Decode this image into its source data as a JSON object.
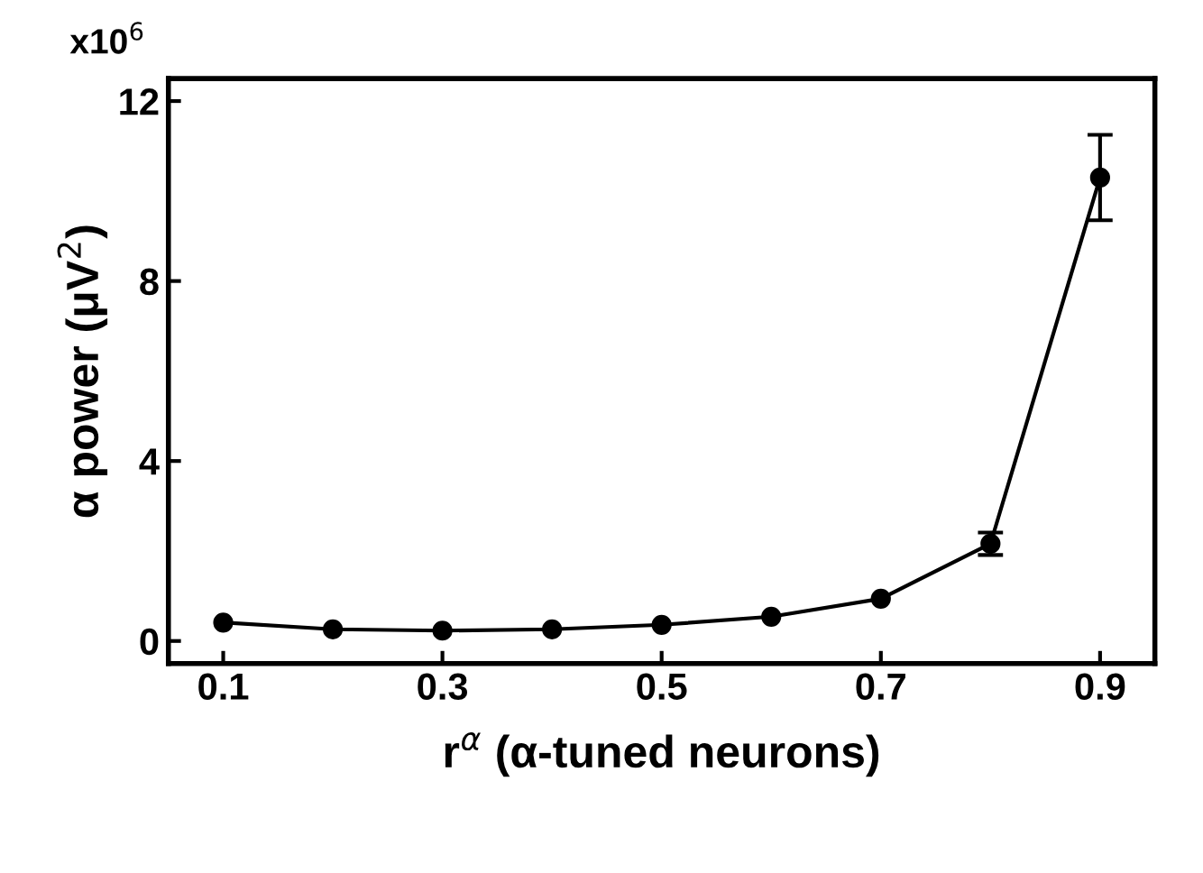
{
  "chart_data": {
    "type": "line",
    "xlabel": "r$^{α}$ (α-tuned neurons)",
    "ylabel": "α power (μV$^{2}$)",
    "annotations": [
      "x10$^{6}$"
    ],
    "x": [
      0.1,
      0.2,
      0.3,
      0.4,
      0.5,
      0.6,
      0.7,
      0.8,
      0.9
    ],
    "series": [
      {
        "color": "#000000",
        "values": [
          0.41,
          0.26,
          0.23,
          0.26,
          0.36,
          0.54,
          0.94,
          2.16,
          10.3
        ],
        "errors": [
          null,
          null,
          null,
          null,
          null,
          null,
          null,
          0.25,
          0.95
        ]
      }
    ],
    "marker": "circle",
    "line_style": "solid",
    "xlim": [
      0.05,
      0.95
    ],
    "ylim": [
      -0.5,
      12.5
    ],
    "xticks": [
      0.1,
      0.3,
      0.5,
      0.7,
      0.9
    ],
    "yticks": [
      0,
      4,
      8,
      12
    ],
    "grid": false,
    "legend": false
  }
}
